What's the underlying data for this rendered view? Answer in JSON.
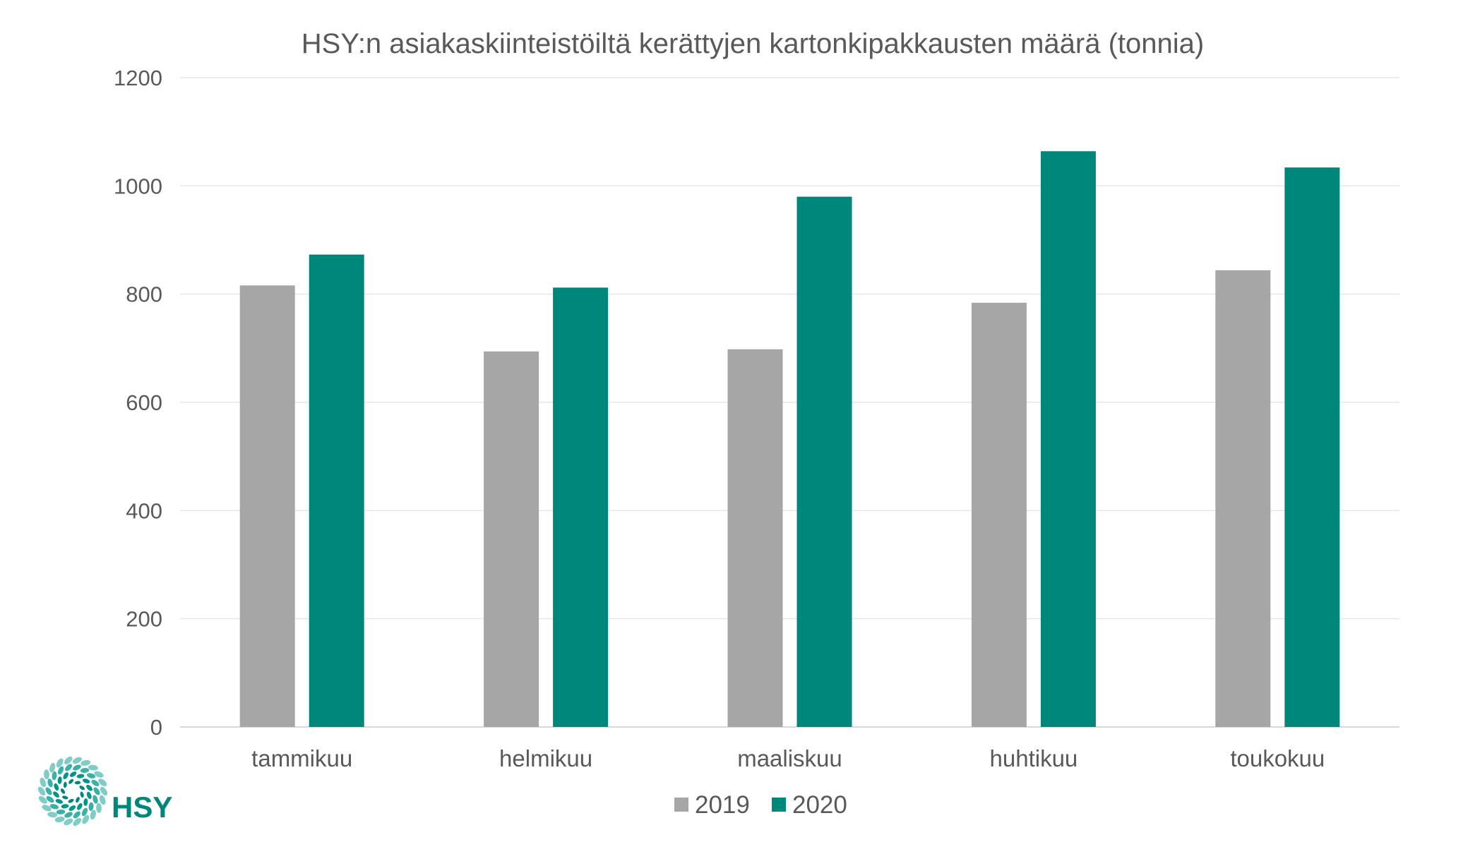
{
  "chart_data": {
    "type": "bar",
    "title": "HSY:n asiakaskiinteistöiltä kerättyjen kartonkipakkausten määrä (tonnia)",
    "xlabel": "",
    "ylabel": "",
    "categories": [
      "tammikuu",
      "helmikuu",
      "maaliskuu",
      "huhtikuu",
      "toukokuu"
    ],
    "series": [
      {
        "name": "2019",
        "values": [
          816,
          694,
          698,
          784,
          844
        ],
        "color": "#a6a6a6"
      },
      {
        "name": "2020",
        "values": [
          873,
          812,
          980,
          1064,
          1034
        ],
        "color": "#00877c"
      }
    ],
    "ylim": [
      0,
      1200
    ],
    "yticks": [
      "0",
      "200",
      "400",
      "600",
      "800",
      "1000",
      "1200"
    ],
    "grid": true,
    "legend_position": "bottom"
  },
  "logo": {
    "text": "HSY",
    "color": "#00877c",
    "icon": "hsy-flower-logo-icon"
  }
}
